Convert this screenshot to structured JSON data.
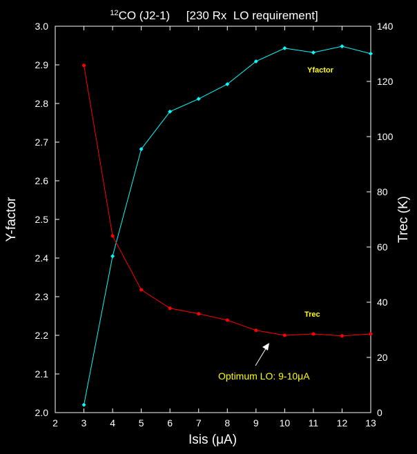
{
  "chart_data": {
    "type": "line",
    "title_sup": "12",
    "title": "CO (J2-1)     [230 Rx  LO requirement]",
    "xlabel": "Isis (μA)",
    "ylabel": "Y-factor",
    "y2label": "Trec (K)",
    "xlim": [
      2,
      13
    ],
    "ylim": [
      2.0,
      3.0
    ],
    "y2lim": [
      0,
      140
    ],
    "xticks": [
      "2",
      "3",
      "4",
      "5",
      "6",
      "7",
      "8",
      "9",
      "10",
      "11",
      "12",
      "13"
    ],
    "yticks": [
      "2.0",
      "2.1",
      "2.2",
      "2.3",
      "2.4",
      "2.5",
      "2.6",
      "2.7",
      "2.8",
      "2.9",
      "3.0"
    ],
    "y2ticks": [
      "0",
      "20",
      "40",
      "60",
      "80",
      "100",
      "120",
      "140"
    ],
    "x": [
      3,
      4,
      5,
      6,
      7,
      8,
      9,
      10,
      11,
      12,
      13
    ],
    "series": [
      {
        "name": "Yfactor",
        "axis": "left",
        "color": "#00ffff",
        "values": [
          2.02,
          2.405,
          2.682,
          2.779,
          2.812,
          2.85,
          2.909,
          2.943,
          2.932,
          2.948,
          2.929
        ]
      },
      {
        "name": "Trec",
        "axis": "right",
        "color": "#ff0000",
        "values": [
          125.8,
          64,
          44.5,
          37.8,
          35.8,
          33.5,
          29.8,
          28.0,
          28.5,
          27.8,
          28.5
        ]
      }
    ],
    "annotation": {
      "text": "Optimum LO:  9-10μA",
      "x": 9.6,
      "y2": 28,
      "color": "#ffff00"
    },
    "label_color": "#ffff00"
  }
}
